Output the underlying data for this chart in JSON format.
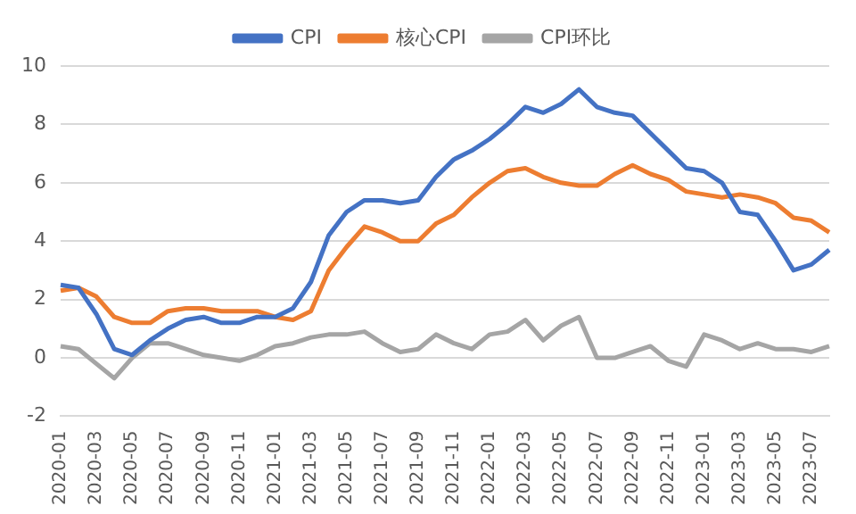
{
  "chart_data": {
    "type": "line",
    "categories": [
      "2020-01",
      null,
      "2020-03",
      null,
      "2020-05",
      null,
      "2020-07",
      null,
      "2020-09",
      null,
      "2020-11",
      null,
      "2021-01",
      null,
      "2021-03",
      null,
      "2021-05",
      null,
      "2021-07",
      null,
      "2021-09",
      null,
      "2021-11",
      null,
      "2022-01",
      null,
      "2022-03",
      null,
      "2022-05",
      null,
      "2022-07",
      null,
      "2022-09",
      null,
      "2022-11",
      null,
      "2023-01",
      null,
      "2023-03",
      null,
      "2023-05",
      null,
      "2023-07",
      null
    ],
    "series": [
      {
        "name": "CPI",
        "color": "#4472c4",
        "values": [
          2.5,
          2.4,
          1.5,
          0.3,
          0.1,
          0.6,
          1.0,
          1.3,
          1.4,
          1.2,
          1.2,
          1.4,
          1.4,
          1.7,
          2.6,
          4.2,
          5.0,
          5.4,
          5.4,
          5.3,
          5.4,
          6.2,
          6.8,
          7.1,
          7.5,
          8.0,
          8.6,
          8.4,
          8.7,
          9.2,
          8.6,
          8.4,
          8.3,
          7.7,
          7.1,
          6.5,
          6.4,
          6.0,
          5.0,
          4.9,
          4.0,
          3.0,
          3.2,
          3.7
        ]
      },
      {
        "name": "核心CPI",
        "color": "#ed7d31",
        "values": [
          2.3,
          2.4,
          2.1,
          1.4,
          1.2,
          1.2,
          1.6,
          1.7,
          1.7,
          1.6,
          1.6,
          1.6,
          1.4,
          1.3,
          1.6,
          3.0,
          3.8,
          4.5,
          4.3,
          4.0,
          4.0,
          4.6,
          4.9,
          5.5,
          6.0,
          6.4,
          6.5,
          6.2,
          6.0,
          5.9,
          5.9,
          6.3,
          6.6,
          6.3,
          6.1,
          5.7,
          5.6,
          5.5,
          5.6,
          5.5,
          5.3,
          4.8,
          4.7,
          4.3
        ]
      },
      {
        "name": "CPI环比",
        "color": "#a5a5a5",
        "values": [
          0.4,
          0.3,
          -0.2,
          -0.7,
          0.0,
          0.5,
          0.5,
          0.3,
          0.1,
          0.0,
          -0.1,
          0.1,
          0.4,
          0.5,
          0.7,
          0.8,
          0.8,
          0.9,
          0.5,
          0.2,
          0.3,
          0.8,
          0.5,
          0.3,
          0.8,
          0.9,
          1.3,
          0.6,
          1.1,
          1.4,
          0.0,
          0.0,
          0.2,
          0.4,
          -0.1,
          -0.3,
          0.8,
          0.6,
          0.3,
          0.5,
          0.3,
          0.3,
          0.2,
          0.4
        ]
      }
    ],
    "ylim": [
      -2,
      10
    ],
    "yticks": [
      -2,
      0,
      2,
      4,
      6,
      8,
      10
    ],
    "grid": "y",
    "legend": "top",
    "marker": "none",
    "line_style": "solid"
  }
}
